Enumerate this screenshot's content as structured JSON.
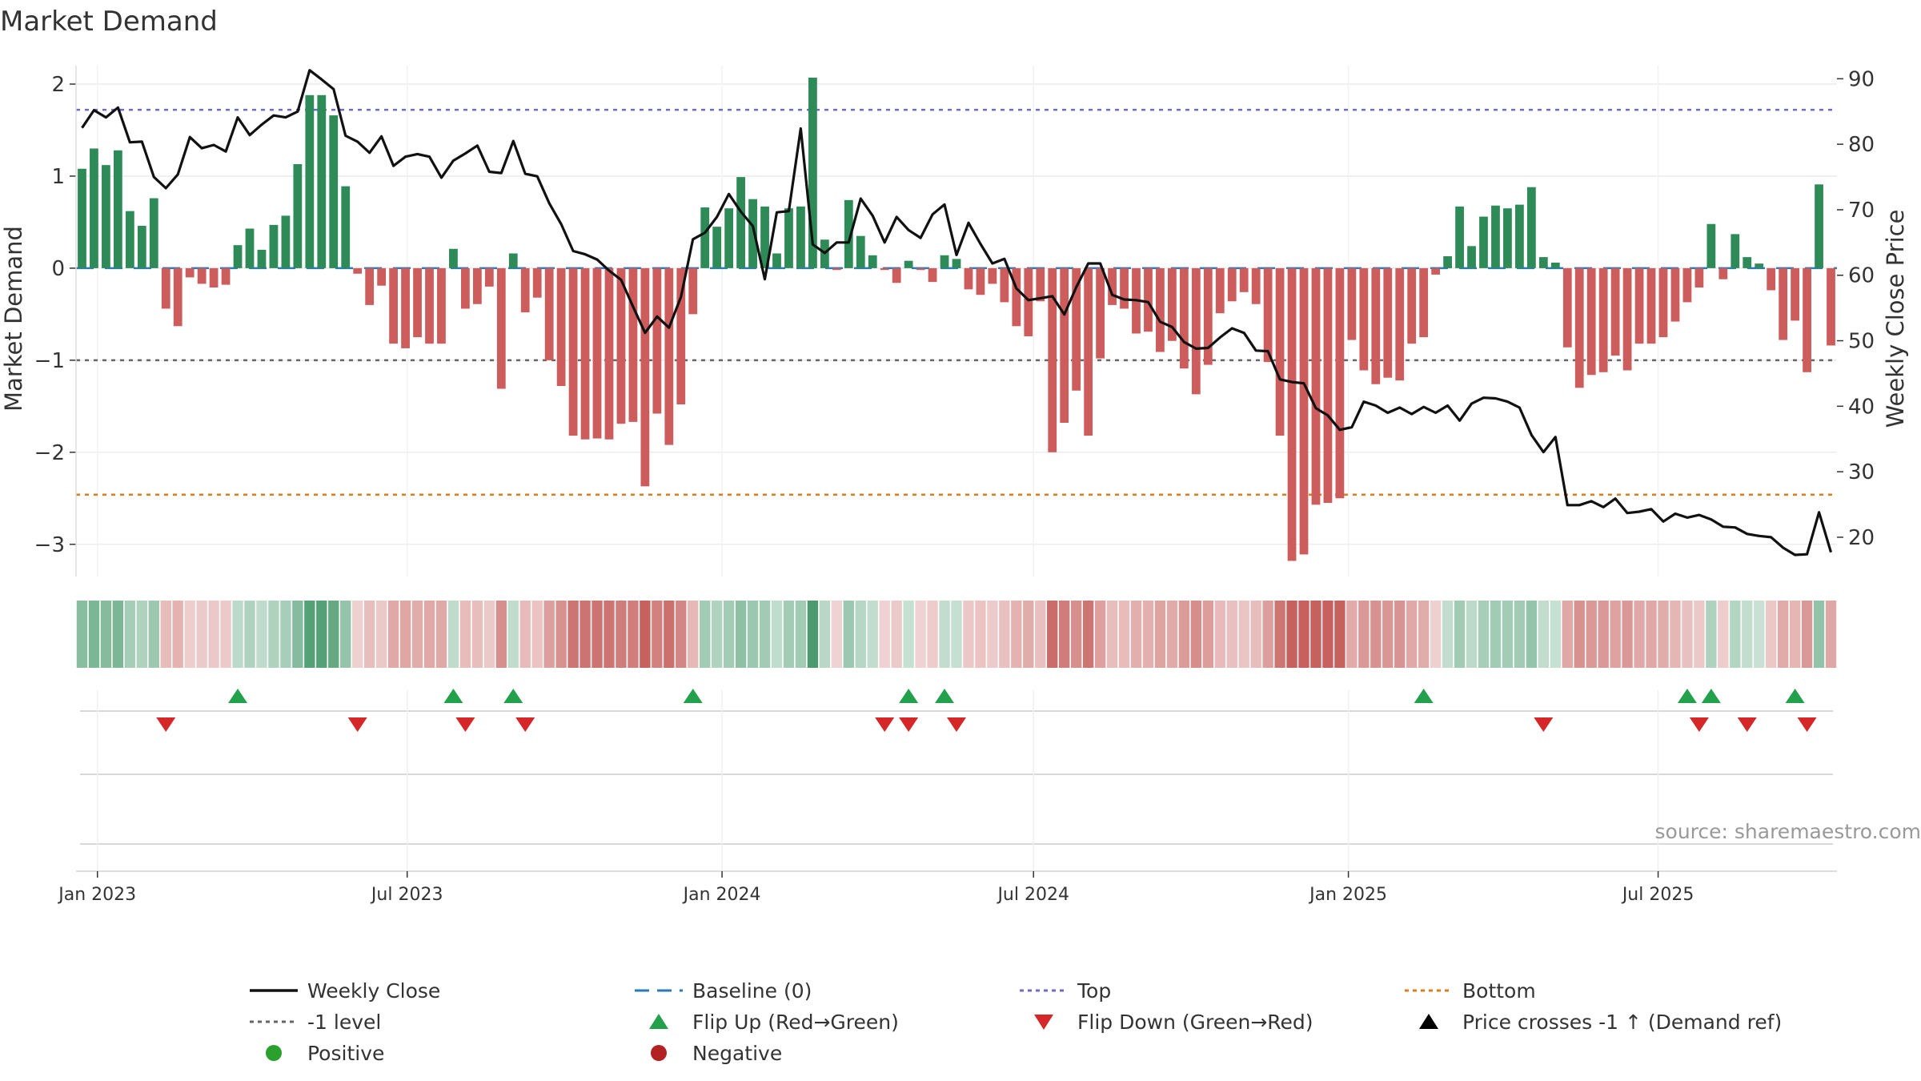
{
  "chart_data": {
    "type": "bar",
    "title": "Market Demand",
    "source": "source: sharemaestro.com",
    "left_axis": {
      "label": "Market Demand",
      "ylim": [
        -3.35,
        2.2
      ],
      "ticks": [
        2,
        1,
        0,
        -1,
        -2,
        -3
      ],
      "tick_labels": [
        "2",
        "1",
        "0",
        "−1",
        "−2",
        "−3"
      ]
    },
    "right_axis": {
      "label": "Weekly Close Price",
      "ylim": [
        14,
        92
      ],
      "ticks": [
        90,
        80,
        70,
        60,
        50,
        40,
        30,
        20
      ],
      "tick_labels": [
        "90",
        "80",
        "70",
        "60",
        "50",
        "40",
        "30",
        "20"
      ]
    },
    "x_axis": {
      "start_date": "2022-12-23",
      "week_count": 147,
      "ticks": [
        {
          "date": "2023-01-01",
          "label": "Jan 2023"
        },
        {
          "date": "2023-07-01",
          "label": "Jul 2023"
        },
        {
          "date": "2024-01-01",
          "label": "Jan 2024"
        },
        {
          "date": "2024-07-01",
          "label": "Jul 2024"
        },
        {
          "date": "2025-01-01",
          "label": "Jan 2025"
        },
        {
          "date": "2025-07-01",
          "label": "Jul 2025"
        }
      ]
    },
    "reference_lines": [
      {
        "name": "Top",
        "value": 1.72,
        "color": "#6d6bc9"
      },
      {
        "name": "-1 level",
        "value": -1.0,
        "color": "#666666"
      },
      {
        "name": "Bottom",
        "value": -2.46,
        "color": "#e07b1a"
      },
      {
        "name": "Baseline (0)",
        "value": 0,
        "color": "#2b7bba"
      }
    ],
    "demand": [
      1.08,
      1.3,
      1.12,
      1.28,
      0.62,
      0.46,
      0.76,
      -0.44,
      -0.63,
      -0.1,
      -0.17,
      -0.21,
      -0.18,
      0.25,
      0.43,
      0.2,
      0.47,
      0.57,
      1.13,
      1.88,
      1.88,
      1.66,
      0.89,
      -0.06,
      -0.4,
      -0.19,
      -0.82,
      -0.87,
      -0.75,
      -0.82,
      -0.82,
      0.21,
      -0.44,
      -0.39,
      -0.2,
      -1.31,
      0.16,
      -0.48,
      -0.32,
      -1.0,
      -1.28,
      -1.82,
      -1.86,
      -1.85,
      -1.86,
      -1.69,
      -1.67,
      -2.37,
      -1.58,
      -1.92,
      -1.48,
      -0.5,
      0.66,
      0.45,
      0.65,
      0.99,
      0.75,
      0.67,
      0.16,
      0.65,
      0.67,
      2.07,
      0.31,
      -0.02,
      0.74,
      0.35,
      0.14,
      -0.02,
      -0.16,
      0.08,
      -0.02,
      -0.15,
      0.14,
      0.1,
      -0.23,
      -0.29,
      -0.17,
      -0.37,
      -0.63,
      -0.74,
      -0.36,
      -2.0,
      -1.68,
      -1.33,
      -1.82,
      -0.98,
      -0.4,
      -0.44,
      -0.71,
      -0.69,
      -0.91,
      -0.79,
      -1.09,
      -1.37,
      -1.05,
      -0.49,
      -0.36,
      -0.26,
      -0.39,
      -1.02,
      -1.82,
      -3.18,
      -3.11,
      -2.57,
      -2.55,
      -2.5,
      -0.78,
      -1.11,
      -1.26,
      -1.19,
      -1.22,
      -0.82,
      -0.75,
      -0.07,
      0.13,
      0.67,
      0.24,
      0.56,
      0.68,
      0.65,
      0.69,
      0.88,
      0.12,
      0.06,
      -0.86,
      -1.3,
      -1.16,
      -1.13,
      -0.95,
      -1.11,
      -0.82,
      -0.82,
      -0.75,
      -0.58,
      -0.37,
      -0.21,
      0.48,
      -0.12,
      0.37,
      0.12,
      0.05,
      -0.24,
      -0.78,
      -0.57,
      -1.13,
      0.91,
      -0.84
    ],
    "close": [
      82.5,
      85.2,
      84.1,
      85.6,
      80.3,
      80.4,
      75.0,
      73.3,
      75.4,
      81.1,
      79.4,
      79.9,
      78.9,
      84.1,
      81.4,
      83.0,
      84.4,
      84.1,
      85.0,
      91.3,
      89.9,
      88.4,
      81.3,
      80.4,
      78.7,
      81.2,
      76.7,
      78.1,
      78.5,
      78.1,
      74.9,
      77.5,
      78.6,
      79.8,
      75.8,
      75.6,
      80.5,
      75.5,
      75.1,
      71.0,
      67.8,
      63.7,
      63.2,
      62.4,
      60.7,
      59.3,
      55.2,
      51.2,
      53.7,
      52.0,
      56.7,
      65.5,
      66.5,
      68.9,
      72.4,
      69.7,
      67.5,
      59.4,
      69.6,
      69.8,
      82.4,
      64.7,
      63.4,
      65.0,
      65.0,
      71.7,
      69.1,
      65.0,
      68.9,
      66.9,
      65.7,
      69.3,
      70.8,
      63.1,
      68.0,
      64.8,
      61.8,
      62.5,
      58.0,
      56.2,
      56.5,
      56.8,
      54.0,
      58.2,
      61.8,
      61.8,
      57.0,
      56.3,
      56.2,
      55.9,
      52.9,
      52.1,
      49.8,
      48.8,
      48.9,
      50.5,
      51.9,
      51.2,
      48.5,
      48.4,
      44.1,
      43.7,
      43.5,
      39.7,
      38.6,
      36.4,
      36.8,
      40.7,
      40.1,
      39.0,
      39.8,
      38.8,
      39.9,
      39.0,
      40.1,
      37.8,
      40.4,
      41.3,
      41.2,
      40.7,
      39.8,
      35.6,
      33.0,
      35.3,
      24.9,
      24.9,
      25.5,
      24.6,
      25.9,
      23.7,
      23.9,
      24.3,
      22.4,
      23.6,
      23.0,
      23.4,
      22.7,
      21.6,
      21.5,
      20.5,
      20.2,
      20.0,
      18.4,
      17.3,
      17.4,
      23.8,
      17.7
    ],
    "demand_strip_note": "Color intensity strip mirrors demand sign and magnitude per week",
    "flip_up_weeks": [
      13,
      31,
      36,
      51,
      69,
      72,
      112,
      134,
      136,
      143
    ],
    "flip_down_weeks": [
      7,
      23,
      32,
      37,
      67,
      69,
      73,
      122,
      135,
      139,
      144
    ],
    "legend": [
      {
        "label": "Weekly Close",
        "symbol": "line",
        "color": "#111111"
      },
      {
        "label": "Baseline (0)",
        "symbol": "dash",
        "color": "#2b7bba"
      },
      {
        "label": "Top",
        "symbol": "dots",
        "color": "#6d6bc9"
      },
      {
        "label": "Bottom",
        "symbol": "dots",
        "color": "#e07b1a"
      },
      {
        "label": "-1 level",
        "symbol": "dots",
        "color": "#666666"
      },
      {
        "label": "Flip Up (Red→Green)",
        "symbol": "triangle-up",
        "color": "#22a04b"
      },
      {
        "label": "Flip Down (Green→Red)",
        "symbol": "triangle-down",
        "color": "#d62728"
      },
      {
        "label": "Price crosses -1 ↑ (Demand ref)",
        "symbol": "triangle-up",
        "color": "#000000"
      },
      {
        "label": "Positive",
        "symbol": "circle",
        "color": "#2ca02c"
      },
      {
        "label": "Negative",
        "symbol": "circle",
        "color": "#b22222"
      }
    ],
    "colors": {
      "positive_bar": "#2e8b57",
      "negative_bar": "#cd5c5c",
      "price_line": "#111111",
      "strip_positive": "#2e8b57",
      "strip_negative": "#c0504d"
    }
  }
}
